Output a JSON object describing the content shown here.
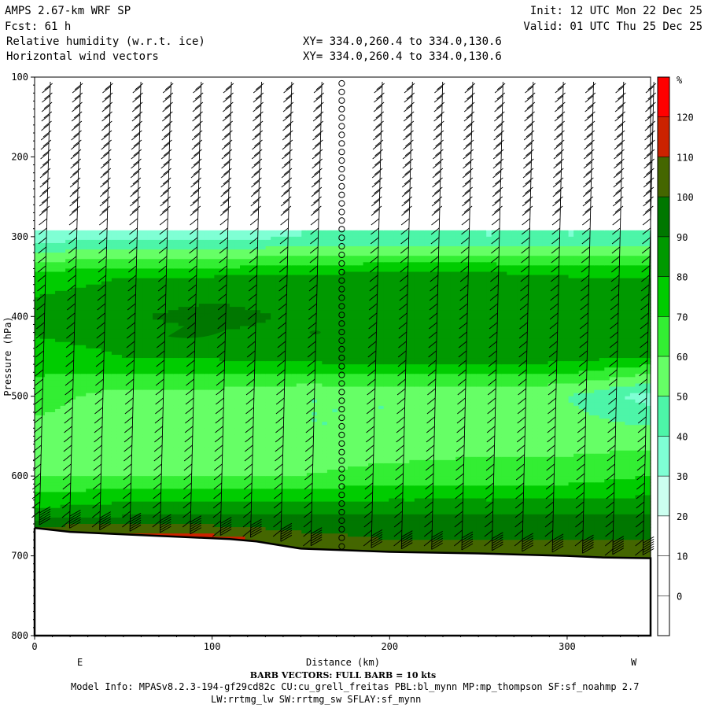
{
  "header": {
    "model": "AMPS 2.67-km WRF SP",
    "fcst": "Fcst:    61 h",
    "field1": "Relative humidity (w.r.t. ice)",
    "field2": "Horizontal wind vectors",
    "init": "Init: 12 UTC Mon 22 Dec 25",
    "valid": "Valid: 01 UTC Thu 25 Dec 25",
    "xy1": "XY= 334.0,260.4 to 334.0,130.6",
    "xy2": "XY= 334.0,260.4 to 334.0,130.6"
  },
  "footer": {
    "barb_note": "BARB VECTORS:  FULL BARB = 10 kts",
    "model_info": "Model Info: MPASv8.2.3-194-gf29cd82c CU:cu_grell_freitas PBL:bl_mynn MP:mp_thompson SF:sf_noahmp 2.7",
    "model_info2": "LW:rrtmg_lw SW:rrtmg_sw SFLAY:sf_mynn"
  },
  "chart_data": {
    "type": "heatmap",
    "xlabel": "Distance (km)",
    "ylabel": "Pressure (hPa)",
    "xlim": [
      0,
      347
    ],
    "ylim": [
      800,
      100
    ],
    "y_inverted": true,
    "x_ticks": [
      0,
      100,
      200,
      300
    ],
    "y_ticks": [
      100,
      200,
      300,
      400,
      500,
      600,
      700,
      800
    ],
    "x_end_labels": {
      "left": "E",
      "right": "W"
    },
    "colorbar": {
      "unit": "%",
      "levels": [
        0,
        10,
        20,
        30,
        40,
        50,
        60,
        70,
        80,
        90,
        100,
        110,
        120
      ],
      "colors": [
        "#ffffff",
        "#ffffff",
        "#ffffff",
        "#ccfff0",
        "#7fffd4",
        "#4df5a8",
        "#66ff66",
        "#33ee33",
        "#00cc00",
        "#009900",
        "#007700",
        "#446600",
        "#cc2200",
        "#ff0000"
      ]
    },
    "rh_profile_x_km": [
      0,
      50,
      100,
      150,
      200,
      250,
      300,
      347
    ],
    "rh_profile_p_hpa": [
      300,
      350,
      400,
      450,
      500,
      550,
      600,
      650,
      680
    ],
    "rh_profile_percent": [
      [
        35,
        75,
        85,
        75,
        65,
        55,
        60,
        85,
        120
      ],
      [
        35,
        80,
        88,
        80,
        55,
        55,
        60,
        90,
        120
      ],
      [
        35,
        80,
        95,
        82,
        55,
        50,
        60,
        90,
        115
      ],
      [
        40,
        82,
        88,
        85,
        50,
        50,
        60,
        90,
        105
      ],
      [
        40,
        85,
        85,
        88,
        50,
        50,
        65,
        90,
        100
      ],
      [
        40,
        85,
        85,
        88,
        50,
        55,
        65,
        90,
        100
      ],
      [
        40,
        80,
        85,
        85,
        50,
        55,
        65,
        90,
        100
      ],
      [
        40,
        80,
        85,
        80,
        35,
        55,
        70,
        90,
        100
      ]
    ],
    "terrain_p_hpa": [
      [
        0,
        665
      ],
      [
        20,
        670
      ],
      [
        50,
        673
      ],
      [
        80,
        676
      ],
      [
        110,
        679
      ],
      [
        125,
        682
      ],
      [
        150,
        691
      ],
      [
        200,
        695
      ],
      [
        250,
        697
      ],
      [
        300,
        700
      ],
      [
        320,
        702
      ],
      [
        347,
        703
      ]
    ],
    "barb_x_km": [
      0,
      17,
      34,
      51,
      68,
      85,
      102,
      119,
      136,
      153,
      170,
      187,
      204,
      221,
      238,
      255,
      272,
      289,
      306,
      323,
      340
    ],
    "barb_levels_hpa_step": 12,
    "calm_column_x_km": 173
  }
}
